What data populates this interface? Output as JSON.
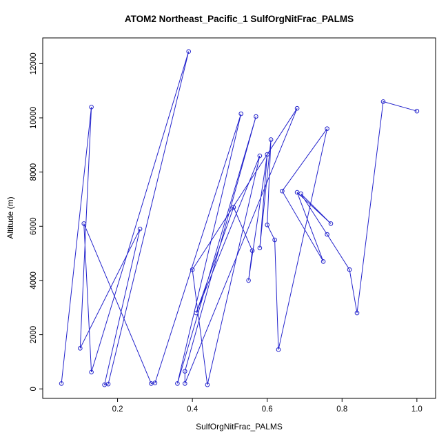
{
  "chart": {
    "title": "ATOM2 Northeast_Pacific_1 SulfOrgNitFrac_PALMS",
    "xlabel": "SulfOrgNitFrac_PALMS",
    "ylabel": "Altitude (m)"
  },
  "chart_data": {
    "type": "line",
    "title": "ATOM2 Northeast_Pacific_1 SulfOrgNitFrac_PALMS",
    "xlabel": "SulfOrgNitFrac_PALMS",
    "ylabel": "Altitude (m)",
    "marker": "open-circle",
    "series_color": "#2222cc",
    "axis_color": "#000000",
    "grid": false,
    "legend": false,
    "x_ticks": [
      0.2,
      0.4,
      0.6,
      0.8,
      1.0
    ],
    "y_ticks": [
      0,
      2000,
      4000,
      6000,
      8000,
      10000,
      12000
    ],
    "xlim": [
      0.0,
      1.05
    ],
    "ylim": [
      -350,
      12950
    ],
    "points": [
      [
        0.05,
        200
      ],
      [
        0.13,
        10400
      ],
      [
        0.1,
        1500
      ],
      [
        0.26,
        5900
      ],
      [
        0.165,
        150
      ],
      [
        0.175,
        180
      ],
      [
        0.39,
        12450
      ],
      [
        0.13,
        620
      ],
      [
        0.11,
        6100
      ],
      [
        0.29,
        200
      ],
      [
        0.3,
        220
      ],
      [
        0.53,
        10150
      ],
      [
        0.36,
        200
      ],
      [
        0.57,
        10050
      ],
      [
        0.38,
        650
      ],
      [
        0.38,
        200
      ],
      [
        0.68,
        10350
      ],
      [
        0.4,
        4400
      ],
      [
        0.44,
        150
      ],
      [
        0.58,
        8600
      ],
      [
        0.41,
        2800
      ],
      [
        0.51,
        6700
      ],
      [
        0.56,
        5100
      ],
      [
        0.55,
        4000
      ],
      [
        0.6,
        8650
      ],
      [
        0.58,
        5200
      ],
      [
        0.61,
        9200
      ],
      [
        0.6,
        6050
      ],
      [
        0.62,
        5500
      ],
      [
        0.63,
        1450
      ],
      [
        0.76,
        9600
      ],
      [
        0.64,
        7300
      ],
      [
        0.75,
        4700
      ],
      [
        0.68,
        7250
      ],
      [
        0.77,
        6100
      ],
      [
        0.69,
        7200
      ],
      [
        0.76,
        5700
      ],
      [
        0.82,
        4400
      ],
      [
        0.84,
        2800
      ],
      [
        0.91,
        10600
      ],
      [
        1.0,
        10250
      ]
    ]
  }
}
